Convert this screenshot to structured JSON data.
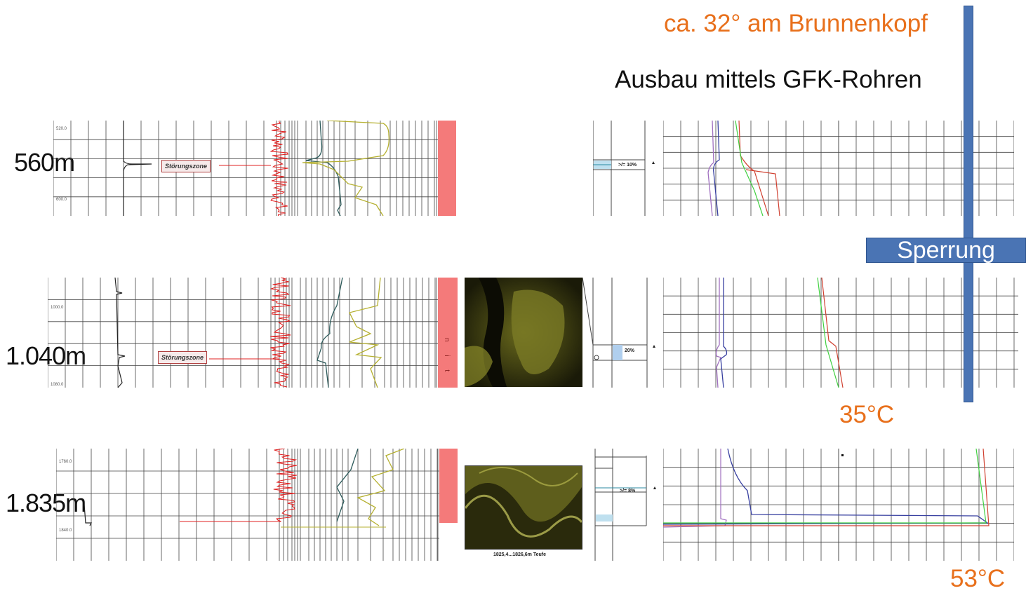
{
  "header": {
    "angle_note": "ca. 32° am Brunnenkopf",
    "completion_note": "Ausbau mittels GFK-Rohren"
  },
  "barrier_label": "Sperrung",
  "rows": [
    {
      "depth_label": "560m",
      "zone_label": "Störungszone",
      "tick_top": "520.0",
      "tick_bottom": "600.0",
      "percent_label": ">/= 10%"
    },
    {
      "depth_label": "1.040m",
      "zone_label": "Störungszone",
      "tick_top": "1000.0",
      "tick_bottom": "1080.0",
      "percent_label": "20%",
      "strip_text": "n i t"
    },
    {
      "depth_label": "1.835m",
      "tick_top": "1760.0",
      "tick_bottom": "1840.0",
      "percent_label": ">/= 8%",
      "image_caption": "1825,4...1826,6m Teufe"
    }
  ],
  "temperatures": {
    "mid": "35°C",
    "bottom": "53°C"
  },
  "colors": {
    "accent_orange": "#e8701c",
    "bar_blue": "#4a74b4",
    "log_red": "#e02020",
    "log_olive": "#b5b030",
    "strip_red": "#f47a7a"
  }
}
